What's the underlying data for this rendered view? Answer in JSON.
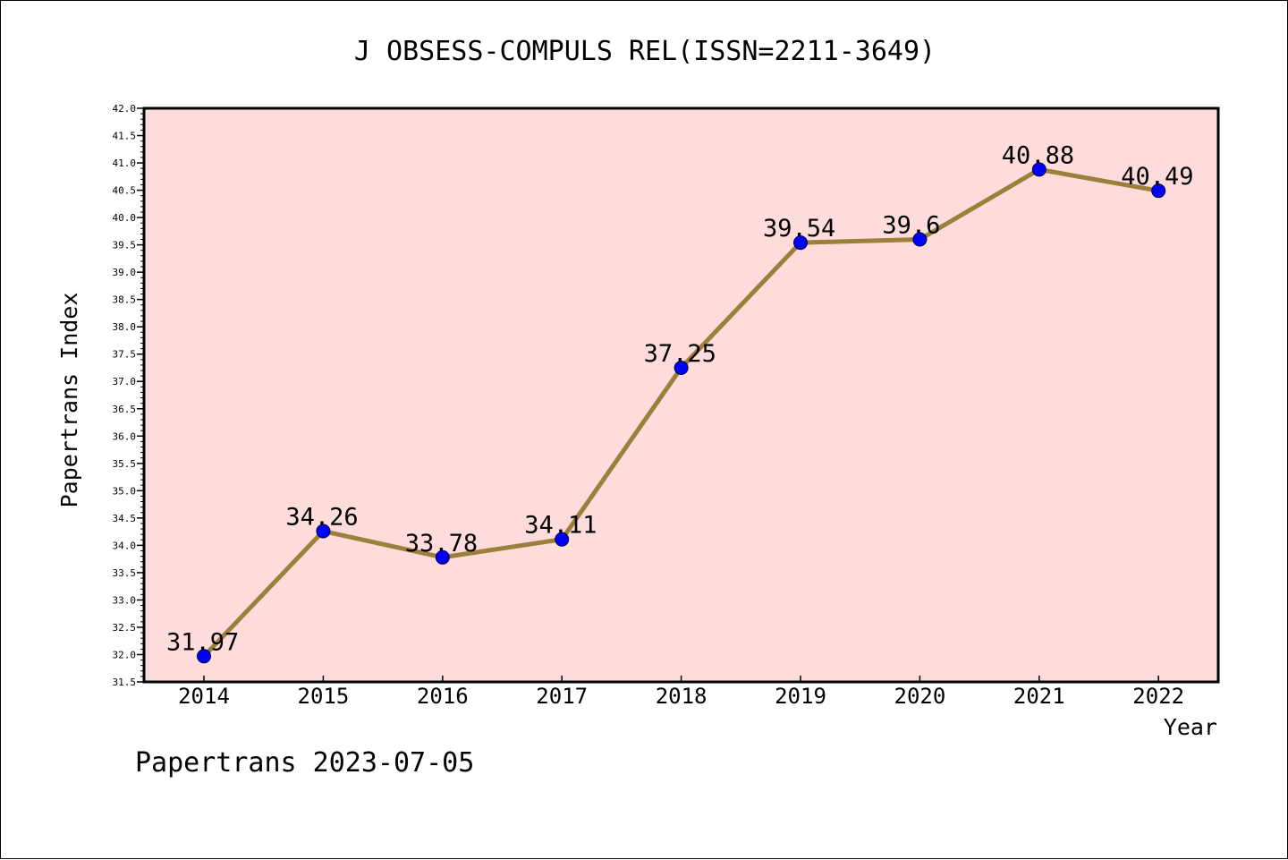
{
  "chart_data": {
    "type": "line",
    "title": "J OBSESS-COMPULS REL(ISSN=2211-3649)",
    "xlabel": "Year",
    "ylabel": "Papertrans Index",
    "categories": [
      "2014",
      "2015",
      "2016",
      "2017",
      "2018",
      "2019",
      "2020",
      "2021",
      "2022"
    ],
    "values": [
      31.97,
      34.26,
      33.78,
      34.11,
      37.25,
      39.54,
      39.6,
      40.88,
      40.49
    ],
    "data_labels": [
      "31.97",
      "34.26",
      "33.78",
      "34.11",
      "37.25",
      "39.54",
      "39.6",
      "40.88",
      "40.49"
    ],
    "ylim": [
      31.5,
      42.0
    ],
    "yticks": [
      "31.5",
      "32.0",
      "32.5",
      "33.0",
      "33.5",
      "34.0",
      "34.5",
      "35.0",
      "35.5",
      "36.0",
      "36.5",
      "37.0",
      "37.5",
      "38.0",
      "38.5",
      "39.0",
      "39.5",
      "40.0",
      "40.5",
      "41.0",
      "41.5",
      "42.0"
    ],
    "grid": false,
    "colors": {
      "line": "#9b7f3a",
      "marker": "#0000ff",
      "plot_background": "#ffdcdc"
    }
  },
  "footer": "Papertrans 2023-07-05"
}
